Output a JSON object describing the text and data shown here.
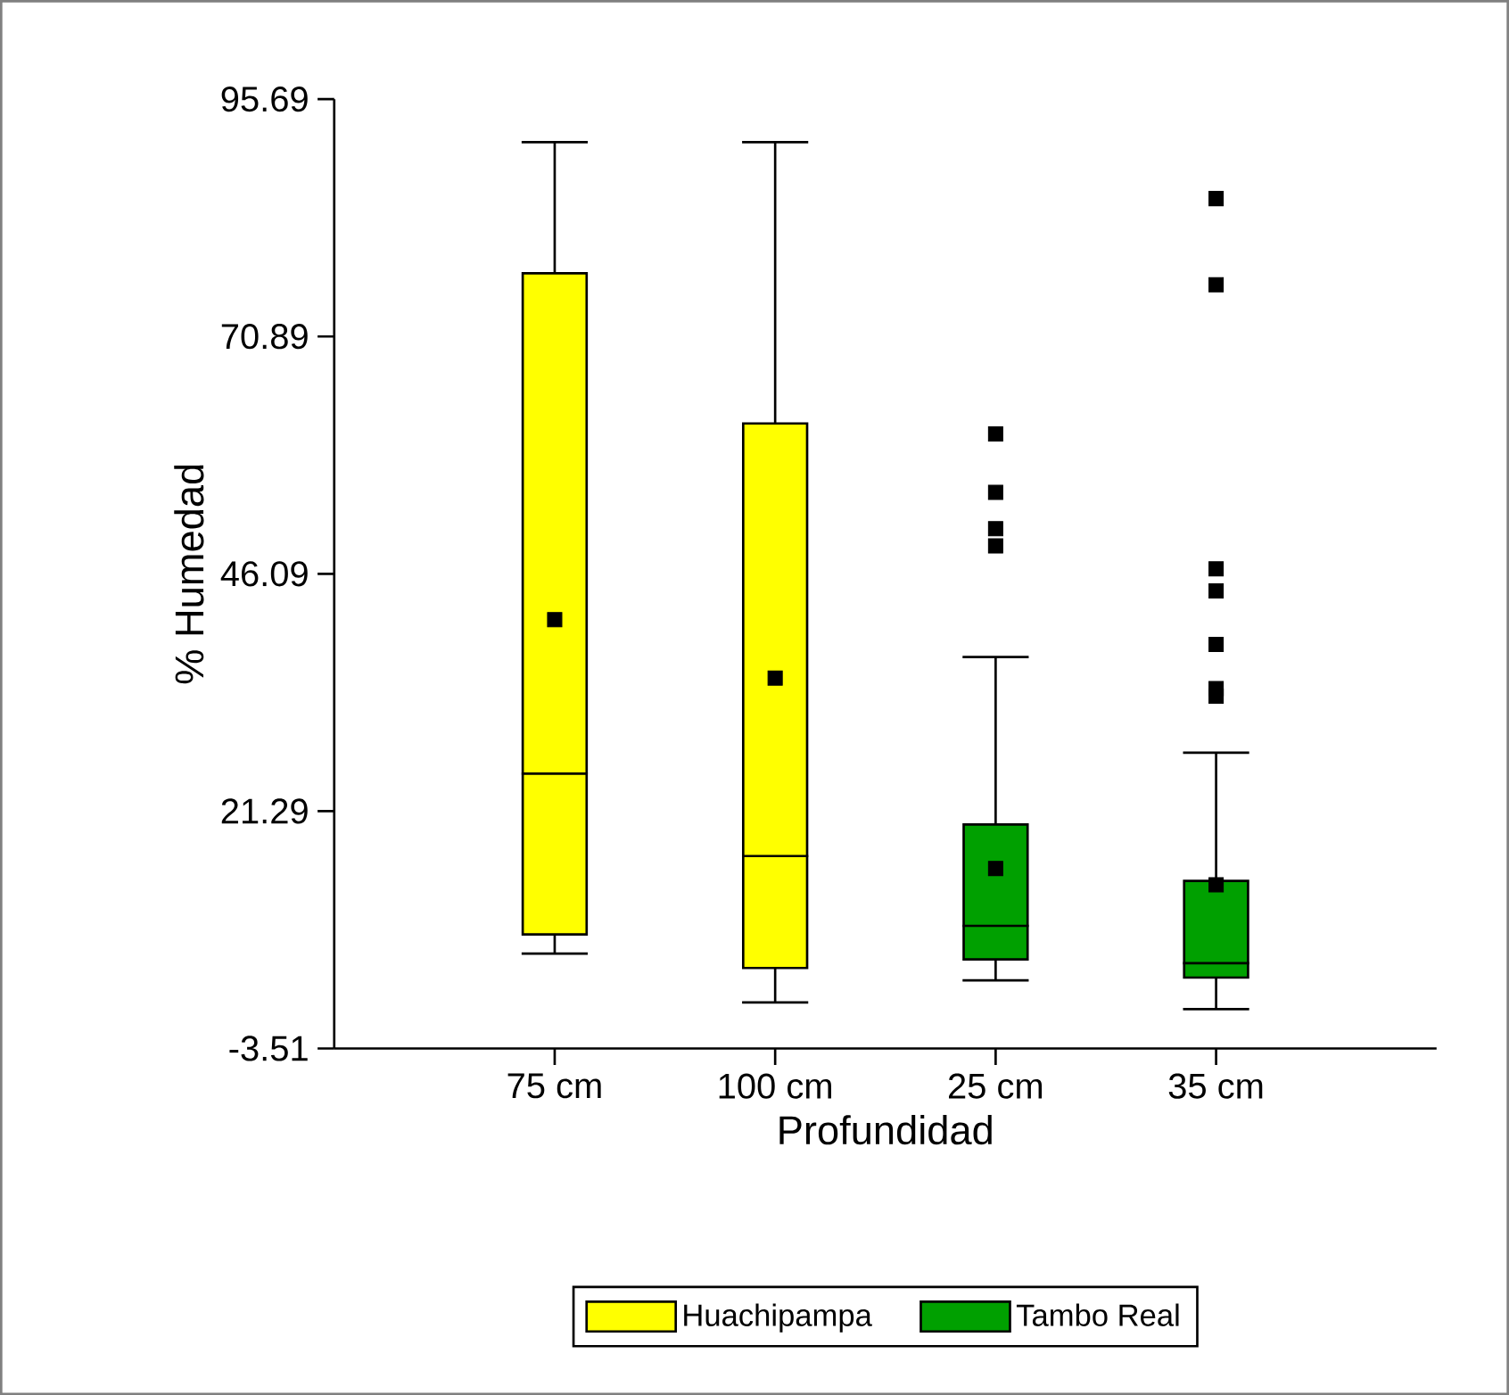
{
  "chart_data": {
    "type": "box",
    "xlabel": "Profundidad",
    "ylabel": "% Humedad",
    "categories": [
      "75 cm",
      "100 cm",
      "25 cm",
      "35 cm"
    ],
    "ylim": [
      -3.51,
      95.69
    ],
    "yticks": [
      -3.51,
      21.29,
      46.09,
      70.89,
      95.69
    ],
    "legend": "bottom",
    "series": [
      {
        "name": "Huachipampa",
        "color": "#ffff00",
        "boxes": [
          {
            "low": 6.4,
            "q1": 8.4,
            "median": 25.2,
            "q3": 77.5,
            "high": 91.2,
            "mean": 41.3
          },
          {
            "low": 1.3,
            "q1": 4.9,
            "median": 16.6,
            "q3": 61.8,
            "high": 91.2,
            "mean": 35.2
          },
          null,
          null
        ]
      },
      {
        "name": "Tambo Real",
        "color": "#00a000",
        "boxes": [
          null,
          null,
          {
            "low": 3.6,
            "q1": 5.8,
            "median": 9.3,
            "q3": 19.9,
            "high": 37.4,
            "mean": 15.3,
            "outliers": [
              60.7,
              54.6,
              50.8,
              49.0
            ]
          },
          {
            "low": 0.6,
            "q1": 3.9,
            "median": 5.4,
            "q3": 14.0,
            "high": 27.4,
            "mean": 13.6,
            "outliers": [
              85.3,
              76.3,
              46.6,
              44.3,
              38.7,
              34.1,
              33.3
            ]
          }
        ]
      }
    ]
  }
}
